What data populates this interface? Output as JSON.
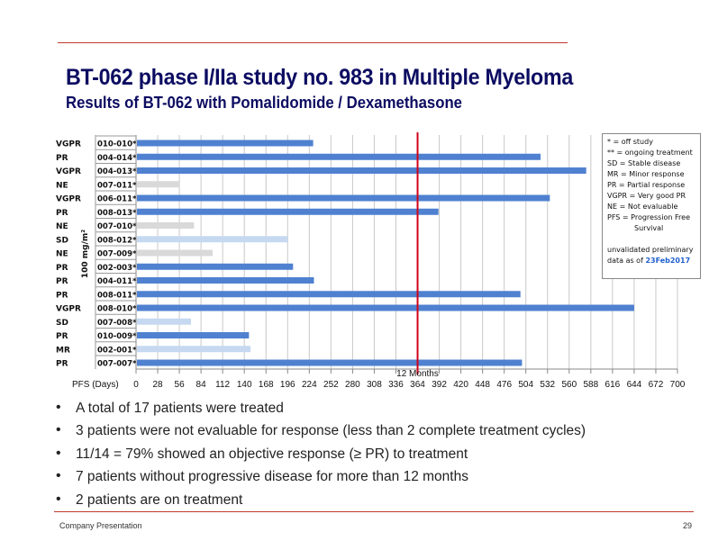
{
  "header": {
    "title": "BT-062 phase I/IIa study no. 983 in Multiple Myeloma",
    "subtitle": "Results of BT-062 with Pomalidomide / Dexamethasone"
  },
  "chart_data": {
    "type": "bar",
    "orientation": "horizontal",
    "xlabel": "PFS (Days)",
    "ylabel": "100 mg/m²",
    "xlim": [
      0,
      700
    ],
    "xticks": [
      0,
      28,
      56,
      84,
      112,
      140,
      168,
      196,
      224,
      252,
      280,
      308,
      336,
      364,
      392,
      420,
      448,
      476,
      504,
      532,
      560,
      588,
      616,
      644,
      672,
      700
    ],
    "reference_line": {
      "value": 364,
      "label": "12 Months",
      "color": "#d0021b"
    },
    "colors": {
      "response": "#4f81d0",
      "stable_minor": "#c6d9f1",
      "not_evaluable": "#d9d9d9"
    },
    "rows": [
      {
        "response": "VGPR",
        "patient": "010-010",
        "marker": "*",
        "days": 229,
        "color_key": "response"
      },
      {
        "response": "PR",
        "patient": "004-014",
        "marker": "*",
        "days": 523,
        "color_key": "response"
      },
      {
        "response": "VGPR",
        "patient": "004-013",
        "marker": "**",
        "days": 582,
        "color_key": "response"
      },
      {
        "response": "NE",
        "patient": "007-011",
        "marker": "*",
        "days": 56,
        "color_key": "not_evaluable"
      },
      {
        "response": "VGPR",
        "patient": "006-011",
        "marker": "*",
        "days": 535,
        "color_key": "response"
      },
      {
        "response": "PR",
        "patient": "008-013",
        "marker": "*",
        "days": 391,
        "color_key": "response"
      },
      {
        "response": "NE",
        "patient": "007-010",
        "marker": "*",
        "days": 75,
        "color_key": "not_evaluable"
      },
      {
        "response": "SD",
        "patient": "008-012",
        "marker": "*",
        "days": 196,
        "color_key": "stable_minor"
      },
      {
        "response": "NE",
        "patient": "007-009",
        "marker": "*",
        "days": 99,
        "color_key": "not_evaluable"
      },
      {
        "response": "PR",
        "patient": "002-003",
        "marker": "*",
        "days": 203,
        "color_key": "response"
      },
      {
        "response": "PR",
        "patient": "004-011",
        "marker": "*",
        "days": 230,
        "color_key": "response"
      },
      {
        "response": "PR",
        "patient": "008-011",
        "marker": "*",
        "days": 497,
        "color_key": "response"
      },
      {
        "response": "VGPR",
        "patient": "008-010",
        "marker": "**",
        "days": 644,
        "color_key": "response"
      },
      {
        "response": "SD",
        "patient": "007-008",
        "marker": "*",
        "days": 71,
        "color_key": "stable_minor"
      },
      {
        "response": "PR",
        "patient": "010-009",
        "marker": "*",
        "days": 146,
        "color_key": "response"
      },
      {
        "response": "MR",
        "patient": "002-001",
        "marker": "*",
        "days": 148,
        "color_key": "stable_minor"
      },
      {
        "response": "PR",
        "patient": "007-007",
        "marker": "*",
        "days": 499,
        "color_key": "response"
      }
    ]
  },
  "legend": {
    "lines": [
      "* = off study",
      "** = ongoing treatment",
      "SD = Stable disease",
      "MR = Minor response",
      "PR = Partial response",
      "VGPR = Very good PR",
      "NE = Not evaluable",
      "PFS = Progression Free"
    ],
    "continuation": "Survival",
    "note": "unvalidated preliminary",
    "note2": "data as of",
    "date": "23Feb2017"
  },
  "bullets": [
    "A total of 17 patients were treated",
    "3 patients were not evaluable for response (less than 2 complete treatment cycles)",
    "11/14 = 79% showed an objective response (≥ PR) to treatment",
    "7 patients without progressive disease for more than 12 months",
    "2 patients are on treatment"
  ],
  "footer": {
    "left": "Company Presentation",
    "page": "29"
  }
}
